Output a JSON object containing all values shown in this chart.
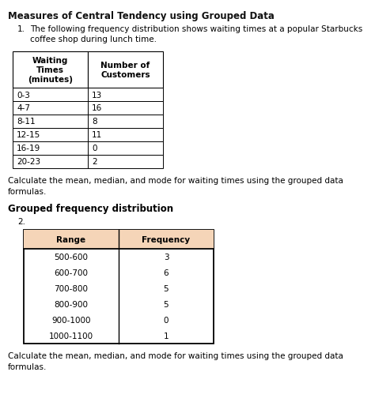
{
  "title": "Measures of Central Tendency using Grouped Data",
  "question1_text": "The following frequency distribution shows waiting times at a popular Starbucks\ncoffee shop during lunch time.",
  "table1_col1_header": "Waiting\nTimes\n(minutes)",
  "table1_col2_header": "Number of\nCustomers",
  "table1_rows": [
    [
      "0-3",
      "13"
    ],
    [
      "4-7",
      "16"
    ],
    [
      "8-11",
      "8"
    ],
    [
      "12-15",
      "11"
    ],
    [
      "16-19",
      "0"
    ],
    [
      "20-23",
      "2"
    ]
  ],
  "calc_text1": "Calculate the mean, median, and mode for waiting times using the grouped data\nformulas.",
  "section2_title": "Grouped frequency distribution",
  "q2_label": "2.",
  "table2_col1_header": "Range",
  "table2_col2_header": "Frequency",
  "table2_rows": [
    [
      "500-600",
      "3"
    ],
    [
      "600-700",
      "6"
    ],
    [
      "700-800",
      "5"
    ],
    [
      "800-900",
      "5"
    ],
    [
      "900-1000",
      "0"
    ],
    [
      "1000-1100",
      "1"
    ]
  ],
  "calc_text2": "Calculate the mean, median, and mode for waiting times using the grouped data\nformulas.",
  "bg_color": "#ffffff",
  "table1_header_bg": "#ffffff",
  "table2_header_bg": "#f5d5b8",
  "table_border_color": "#000000",
  "title_fontsize": 8.5,
  "body_fontsize": 7.5,
  "small_fontsize": 7.0
}
